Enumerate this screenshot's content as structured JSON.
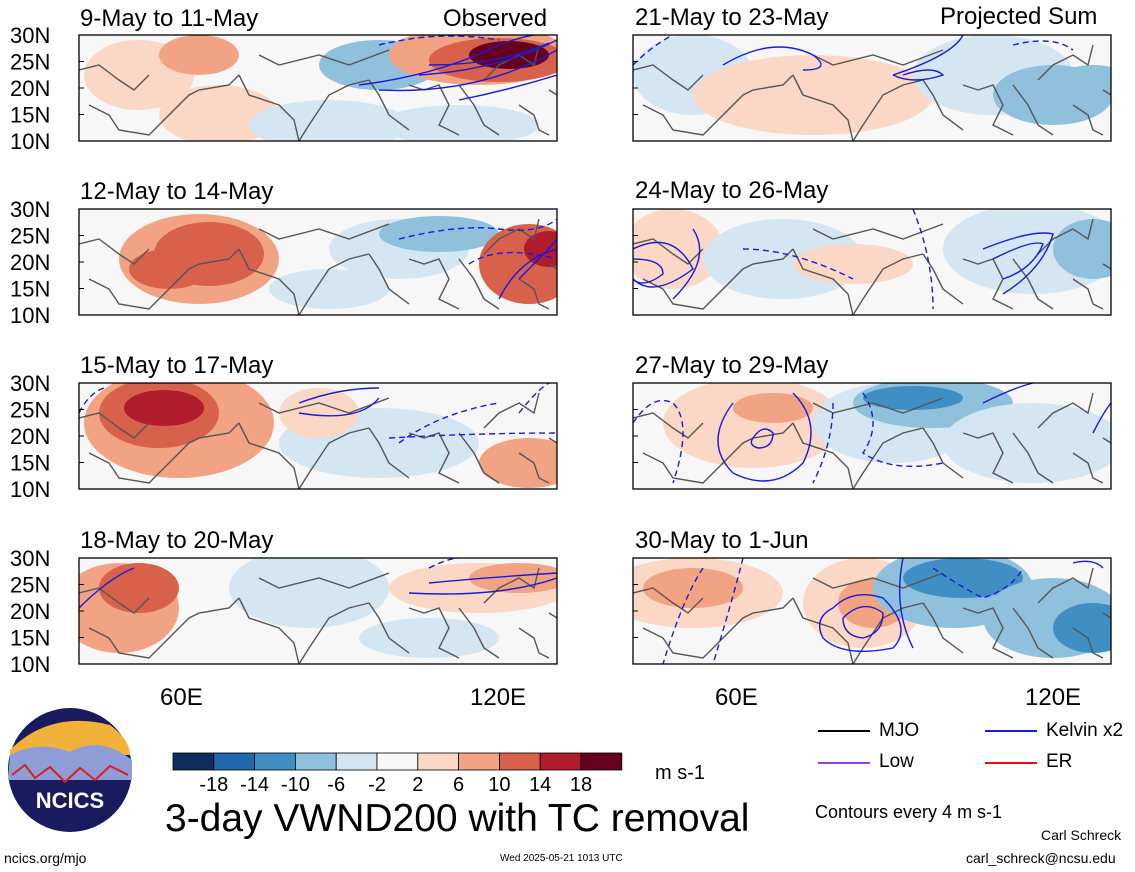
{
  "headers": {
    "observed": "Observed",
    "projected": "Projected Sum"
  },
  "panels": [
    {
      "label": "9-May to 11-May",
      "column": "left",
      "row": 0
    },
    {
      "label": "12-May to 14-May",
      "column": "left",
      "row": 1
    },
    {
      "label": "15-May to 17-May",
      "column": "left",
      "row": 2
    },
    {
      "label": "18-May to 20-May",
      "column": "left",
      "row": 3
    },
    {
      "label": "21-May to 23-May",
      "column": "right",
      "row": 0
    },
    {
      "label": "24-May to 26-May",
      "column": "right",
      "row": 1
    },
    {
      "label": "27-May to 29-May",
      "column": "right",
      "row": 2
    },
    {
      "label": "30-May to 1-Jun",
      "column": "right",
      "row": 3
    }
  ],
  "lat_ticks": [
    "30N",
    "25N",
    "20N",
    "15N",
    "10N"
  ],
  "lon_ticks": [
    "60E",
    "120E"
  ],
  "colorbar": {
    "labels": [
      "-18",
      "-14",
      "-10",
      "-6",
      "-2",
      "2",
      "6",
      "10",
      "14",
      "18"
    ],
    "colors": [
      "#0d2f5c",
      "#1f68ad",
      "#3f8fc4",
      "#8fc1dd",
      "#d4e6f1",
      "#f7f7f7",
      "#fbd7c5",
      "#f2a383",
      "#d8614b",
      "#b01c2b",
      "#67001f"
    ],
    "units": "m s-1"
  },
  "legend": {
    "items": [
      {
        "label": "MJO",
        "color": "#000000"
      },
      {
        "label": "Kelvin x2",
        "color": "#1a1adb"
      },
      {
        "label": "Low",
        "color": "#9a3fd6"
      },
      {
        "label": "ER",
        "color": "#e01010"
      }
    ],
    "contours_note": "Contours every 4 m s-1"
  },
  "logo": {
    "text": "NCICS"
  },
  "title": "3-day VWND200 with TC removal",
  "footer": {
    "url": "ncics.org/mjo",
    "timestamp": "Wed 2025-05-21 1013 UTC",
    "author": "Carl Schreck",
    "email": "carl_schreck@ncsu.edu"
  }
}
